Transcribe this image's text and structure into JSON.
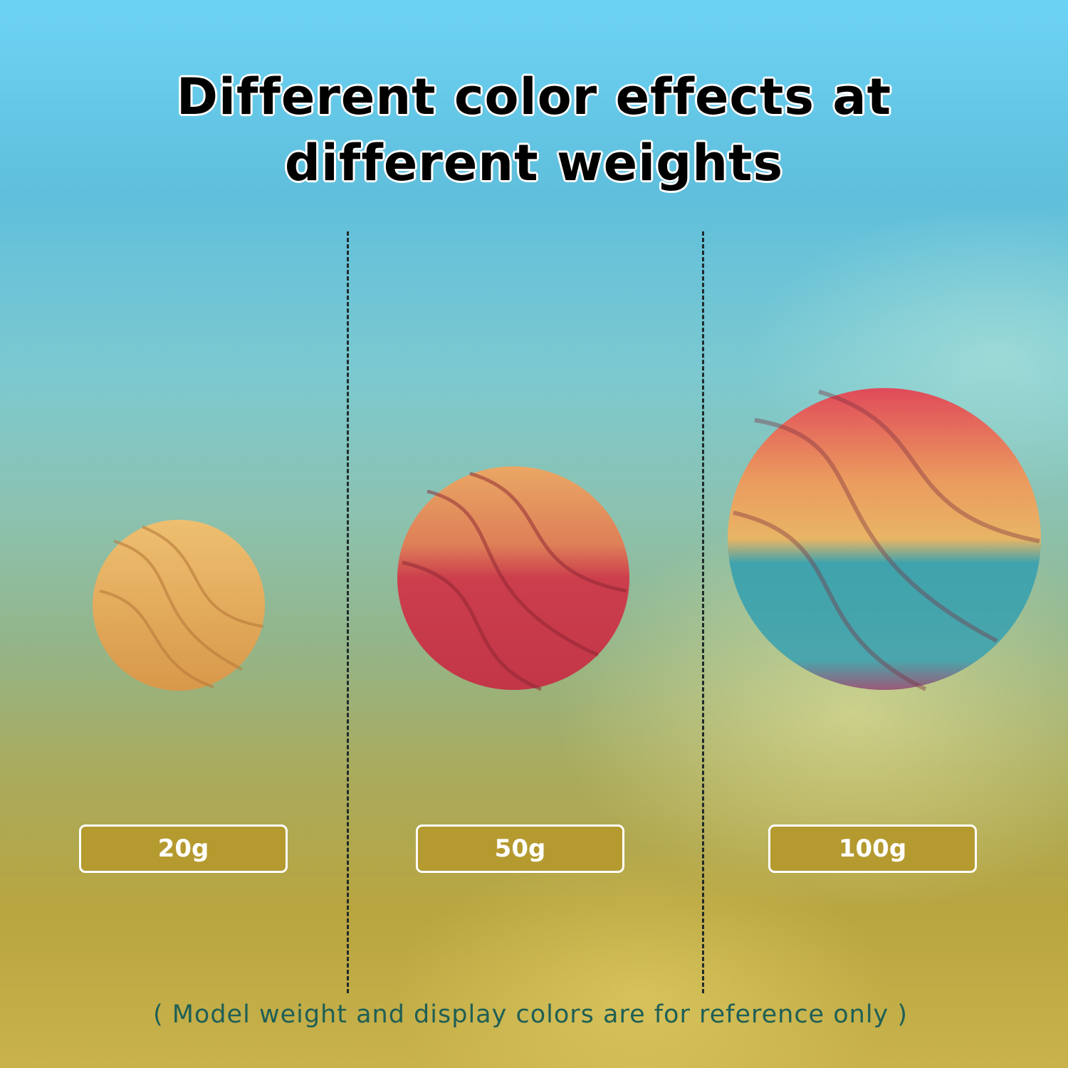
{
  "heading": {
    "line1": "Different color effects at",
    "line2": "different weights"
  },
  "items": [
    {
      "weight": "20g",
      "colors": [
        "#e9b766",
        "#d99a4a"
      ]
    },
    {
      "weight": "50g",
      "colors": [
        "#e8a060",
        "#c83a48"
      ]
    },
    {
      "weight": "100g",
      "colors": [
        "#e04a5a",
        "#eab060",
        "#3aa0a8"
      ]
    }
  ],
  "footnote": "( Model weight and display colors are for reference only )"
}
